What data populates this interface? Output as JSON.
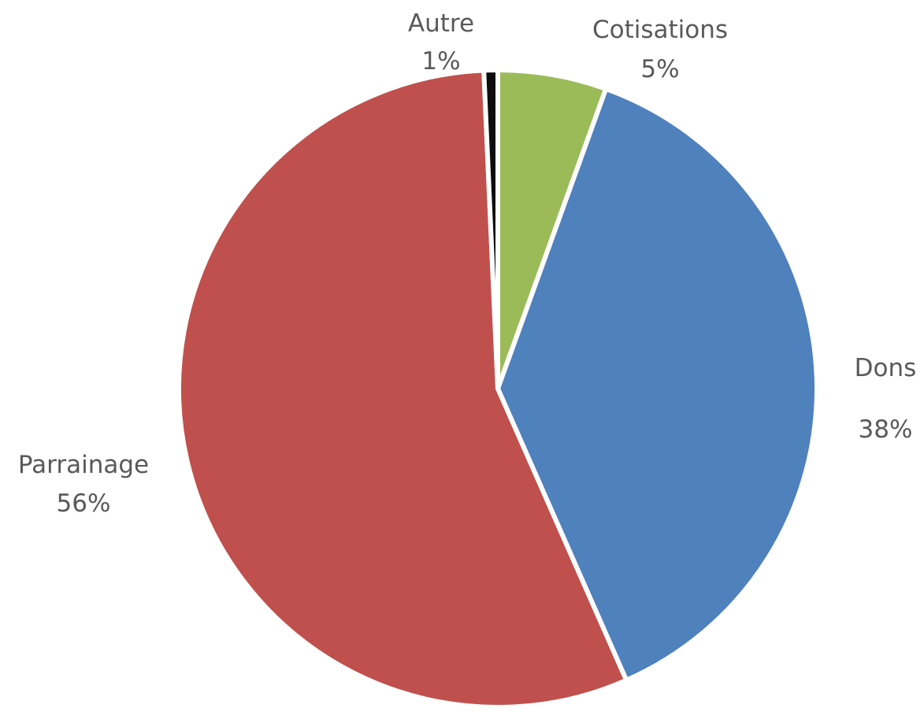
{
  "chart_data": {
    "type": "pie",
    "slices": [
      {
        "label": "Cotisations",
        "value": 5.5,
        "display": "5%",
        "color": "#9BBB59"
      },
      {
        "label": "Dons",
        "value": 37.9,
        "display": "38%",
        "color": "#4F81BD"
      },
      {
        "label": "Parrainage",
        "value": 55.9,
        "display": "56%",
        "color": "#C0504D"
      },
      {
        "label": "Autre",
        "value": 0.7,
        "display": "1%",
        "color": "#0D0D0D"
      }
    ],
    "start": "12 o'clock",
    "direction": "clockwise",
    "separator_color": "#FFFFFF",
    "label_color": "#595959",
    "legend": "none"
  }
}
